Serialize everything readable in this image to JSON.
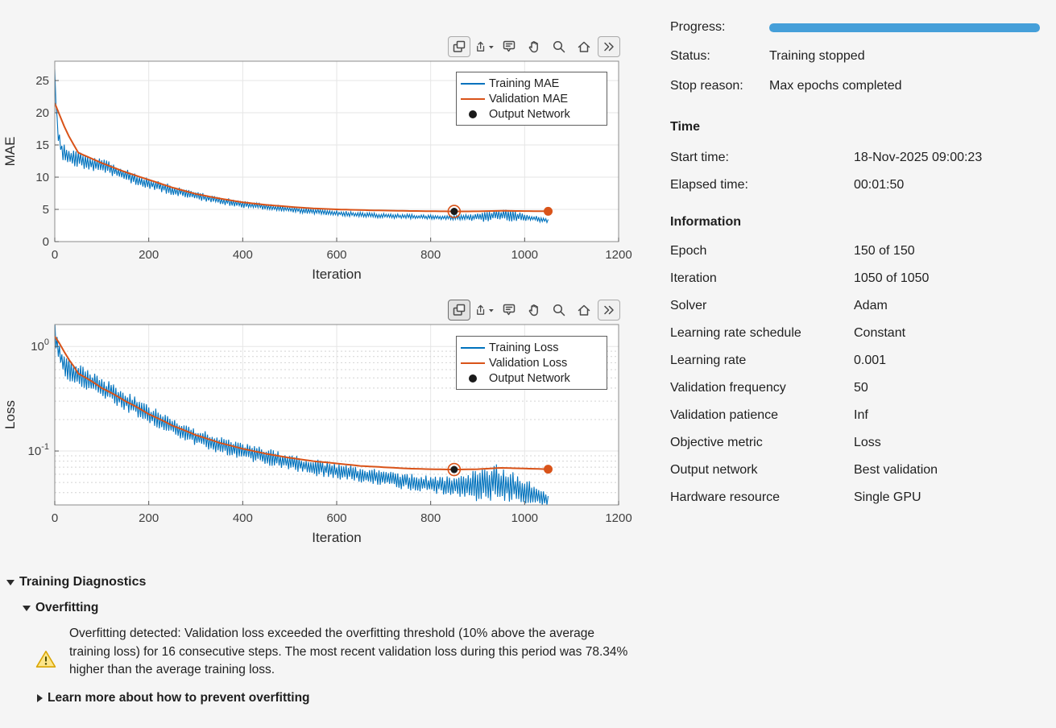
{
  "panel": {
    "progress_label": "Progress:",
    "progress_percent": 100,
    "progress_color": "#459FD9",
    "status_label": "Status:",
    "status_value": "Training stopped",
    "stop_reason_label": "Stop reason:",
    "stop_reason_value": "Max epochs completed",
    "time": {
      "header": "Time",
      "rows": [
        {
          "label": "Start time:",
          "value": "18-Nov-2025 09:00:23"
        },
        {
          "label": "Elapsed time:",
          "value": "00:01:50"
        }
      ]
    },
    "information": {
      "header": "Information",
      "rows": [
        {
          "label": "Epoch",
          "value": "150 of 150"
        },
        {
          "label": "Iteration",
          "value": "1050 of 1050"
        },
        {
          "label": "Solver",
          "value": "Adam"
        },
        {
          "label": "Learning rate schedule",
          "value": "Constant"
        },
        {
          "label": "Learning rate",
          "value": "0.001"
        },
        {
          "label": "Validation frequency",
          "value": "50"
        },
        {
          "label": "Validation patience",
          "value": "Inf"
        },
        {
          "label": "Objective metric",
          "value": "Loss"
        },
        {
          "label": "Output network",
          "value": "Best validation"
        },
        {
          "label": "Hardware resource",
          "value": "Single GPU"
        }
      ]
    }
  },
  "toolbar": {
    "icons": [
      "layers",
      "export",
      "datatip",
      "pan",
      "zoom",
      "home",
      "expand"
    ]
  },
  "diagnostics": {
    "title": "Training Diagnostics",
    "overfitting_title": "Overfitting",
    "warning_text": "Overfitting detected: Validation loss exceeded the overfitting threshold (10% above the average training loss) for 16 consecutive steps. The most recent validation loss during this period was 78.34% higher than the average training loss.",
    "learn_more": "Learn more about how to prevent overfitting"
  },
  "chart_data": [
    {
      "type": "line",
      "title": "",
      "xlabel": "Iteration",
      "ylabel": "MAE",
      "yscale": "linear",
      "xlim": [
        0,
        1200
      ],
      "ylim": [
        0,
        28
      ],
      "xticks": [
        0,
        200,
        400,
        600,
        800,
        1000,
        1200
      ],
      "yticks": [
        0,
        5,
        10,
        15,
        20,
        25
      ],
      "grid": true,
      "legend_position": "northeast",
      "legend": [
        "Training MAE",
        "Validation MAE",
        "Output Network"
      ],
      "series": [
        {
          "name": "Training MAE",
          "color": "#0072BD",
          "base": [
            [
              0,
              26
            ],
            [
              5,
              18
            ],
            [
              15,
              14
            ],
            [
              30,
              13.2
            ],
            [
              60,
              12.5
            ],
            [
              100,
              11.8
            ],
            [
              130,
              11
            ],
            [
              160,
              10
            ],
            [
              200,
              9
            ],
            [
              250,
              8
            ],
            [
              300,
              7.1
            ],
            [
              350,
              6.4
            ],
            [
              400,
              5.8
            ],
            [
              450,
              5.4
            ],
            [
              500,
              5.0
            ],
            [
              550,
              4.7
            ],
            [
              600,
              4.4
            ],
            [
              650,
              4.2
            ],
            [
              700,
              4.0
            ],
            [
              750,
              3.9
            ],
            [
              800,
              3.8
            ],
            [
              850,
              3.7
            ],
            [
              900,
              3.8
            ],
            [
              940,
              4.1
            ],
            [
              970,
              4.0
            ],
            [
              1000,
              3.8
            ],
            [
              1030,
              3.5
            ],
            [
              1050,
              3.2
            ]
          ],
          "noise": [
            [
              0,
              1.5
            ],
            [
              30,
              1.4
            ],
            [
              60,
              1.2
            ],
            [
              150,
              1.0
            ],
            [
              250,
              0.8
            ],
            [
              350,
              0.6
            ],
            [
              450,
              0.5
            ],
            [
              600,
              0.4
            ],
            [
              800,
              0.35
            ],
            [
              880,
              0.45
            ],
            [
              920,
              0.9
            ],
            [
              960,
              1.0
            ],
            [
              1000,
              0.6
            ],
            [
              1030,
              0.45
            ],
            [
              1050,
              0.3
            ]
          ]
        },
        {
          "name": "Validation MAE",
          "color": "#D95319",
          "base": [
            [
              0,
              21.5
            ],
            [
              25,
              17
            ],
            [
              50,
              13.8
            ],
            [
              100,
              12.2
            ],
            [
              150,
              10.8
            ],
            [
              200,
              9.6
            ],
            [
              250,
              8.4
            ],
            [
              300,
              7.4
            ],
            [
              350,
              6.7
            ],
            [
              400,
              6.1
            ],
            [
              450,
              5.7
            ],
            [
              500,
              5.4
            ],
            [
              550,
              5.15
            ],
            [
              600,
              5.0
            ],
            [
              650,
              4.9
            ],
            [
              700,
              4.82
            ],
            [
              750,
              4.76
            ],
            [
              800,
              4.72
            ],
            [
              850,
              4.68
            ],
            [
              900,
              4.7
            ],
            [
              950,
              4.78
            ],
            [
              1000,
              4.74
            ],
            [
              1050,
              4.7
            ]
          ],
          "noise": []
        }
      ],
      "output_marker": {
        "x": 850,
        "y": 4.68,
        "label": "Output Network"
      },
      "final_marker": {
        "x": 1050,
        "y": 4.7
      }
    },
    {
      "type": "line",
      "title": "",
      "xlabel": "Iteration",
      "ylabel": "Loss",
      "yscale": "log",
      "xlim": [
        0,
        1200
      ],
      "ylim": [
        0.0305,
        1.62
      ],
      "xticks": [
        0,
        200,
        400,
        600,
        800,
        1000,
        1200
      ],
      "yticks": [
        1,
        0.1
      ],
      "grid": true,
      "legend_position": "northeast",
      "legend": [
        "Training Loss",
        "Validation Loss",
        "Output Network"
      ],
      "series": [
        {
          "name": "Training Loss",
          "color": "#0072BD",
          "base": [
            [
              0,
              1.5
            ],
            [
              5,
              1.0
            ],
            [
              15,
              0.75
            ],
            [
              30,
              0.6
            ],
            [
              60,
              0.5
            ],
            [
              100,
              0.4
            ],
            [
              150,
              0.3
            ],
            [
              200,
              0.22
            ],
            [
              250,
              0.17
            ],
            [
              300,
              0.135
            ],
            [
              350,
              0.115
            ],
            [
              400,
              0.1
            ],
            [
              450,
              0.088
            ],
            [
              500,
              0.078
            ],
            [
              550,
              0.07
            ],
            [
              600,
              0.064
            ],
            [
              650,
              0.059
            ],
            [
              700,
              0.055
            ],
            [
              750,
              0.051
            ],
            [
              800,
              0.048
            ],
            [
              850,
              0.046
            ],
            [
              900,
              0.047
            ],
            [
              940,
              0.05
            ],
            [
              970,
              0.046
            ],
            [
              1000,
              0.042
            ],
            [
              1030,
              0.038
            ],
            [
              1050,
              0.034
            ]
          ],
          "noise": [
            [
              0,
              0.12
            ],
            [
              100,
              0.1
            ],
            [
              300,
              0.09
            ],
            [
              500,
              0.08
            ],
            [
              700,
              0.08
            ],
            [
              850,
              0.09
            ],
            [
              900,
              0.16
            ],
            [
              950,
              0.18
            ],
            [
              1000,
              0.13
            ],
            [
              1030,
              0.1
            ],
            [
              1050,
              0.08
            ]
          ]
        },
        {
          "name": "Validation Loss",
          "color": "#D95319",
          "base": [
            [
              0,
              1.25
            ],
            [
              25,
              0.8
            ],
            [
              50,
              0.55
            ],
            [
              100,
              0.4
            ],
            [
              150,
              0.3
            ],
            [
              200,
              0.225
            ],
            [
              250,
              0.175
            ],
            [
              300,
              0.142
            ],
            [
              350,
              0.12
            ],
            [
              400,
              0.105
            ],
            [
              450,
              0.094
            ],
            [
              500,
              0.086
            ],
            [
              550,
              0.08
            ],
            [
              600,
              0.076
            ],
            [
              650,
              0.072
            ],
            [
              700,
              0.07
            ],
            [
              750,
              0.068
            ],
            [
              800,
              0.067
            ],
            [
              850,
              0.0665
            ],
            [
              900,
              0.067
            ],
            [
              950,
              0.069
            ],
            [
              1000,
              0.068
            ],
            [
              1050,
              0.067
            ]
          ],
          "noise": []
        }
      ],
      "output_marker": {
        "x": 850,
        "y": 0.0665,
        "label": "Output Network"
      },
      "final_marker": {
        "x": 1050,
        "y": 0.067
      }
    }
  ]
}
